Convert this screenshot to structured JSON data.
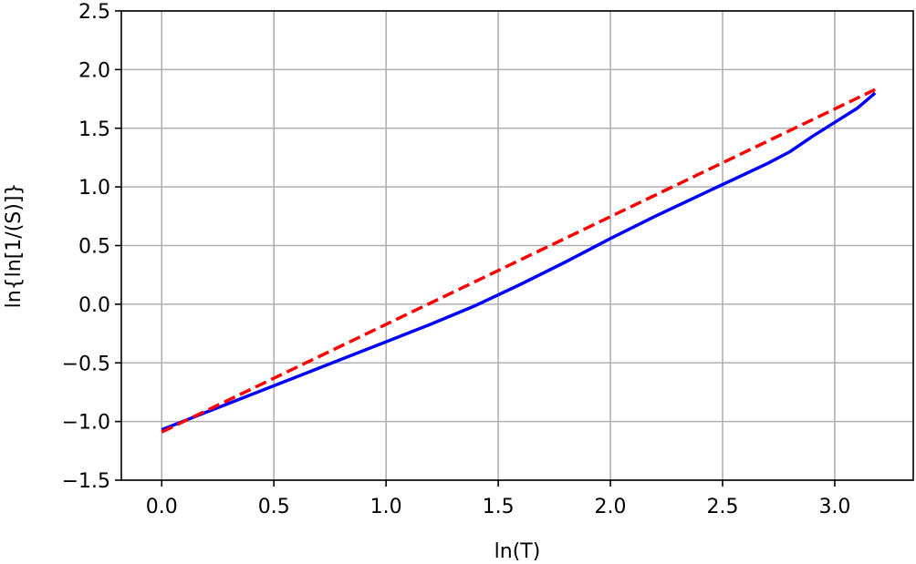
{
  "chart_data": {
    "type": "line",
    "title": "",
    "xlabel": "ln(T)",
    "ylabel": "ln{ln[1/(S)]}",
    "xlim": [
      -0.18,
      3.35
    ],
    "ylim": [
      -1.5,
      2.5
    ],
    "xticks": [
      "0.0",
      "0.5",
      "1.0",
      "1.5",
      "2.0",
      "2.5",
      "3.0"
    ],
    "xtick_values": [
      0.0,
      0.5,
      1.0,
      1.5,
      2.0,
      2.5,
      3.0
    ],
    "yticks": [
      "−1.5",
      "−1.0",
      "−0.5",
      "0.0",
      "0.5",
      "1.0",
      "1.5",
      "2.0",
      "2.5"
    ],
    "ytick_values": [
      -1.5,
      -1.0,
      -0.5,
      0.0,
      0.5,
      1.0,
      1.5,
      2.0,
      2.5
    ],
    "grid": true,
    "series": [
      {
        "color": "#0000ff",
        "style": "solid",
        "x": [
          0.0,
          0.2,
          0.4,
          0.6,
          0.8,
          1.0,
          1.2,
          1.4,
          1.6,
          1.8,
          2.0,
          2.2,
          2.4,
          2.6,
          2.7,
          2.8,
          2.9,
          3.0,
          3.1,
          3.18
        ],
        "y": [
          -1.07,
          -0.92,
          -0.77,
          -0.62,
          -0.47,
          -0.32,
          -0.17,
          -0.01,
          0.17,
          0.36,
          0.56,
          0.75,
          0.93,
          1.11,
          1.2,
          1.3,
          1.43,
          1.55,
          1.67,
          1.8
        ]
      },
      {
        "color": "#ff0000",
        "style": "dashed",
        "x": [
          0.0,
          3.18
        ],
        "y": [
          -1.09,
          1.83
        ]
      }
    ]
  }
}
